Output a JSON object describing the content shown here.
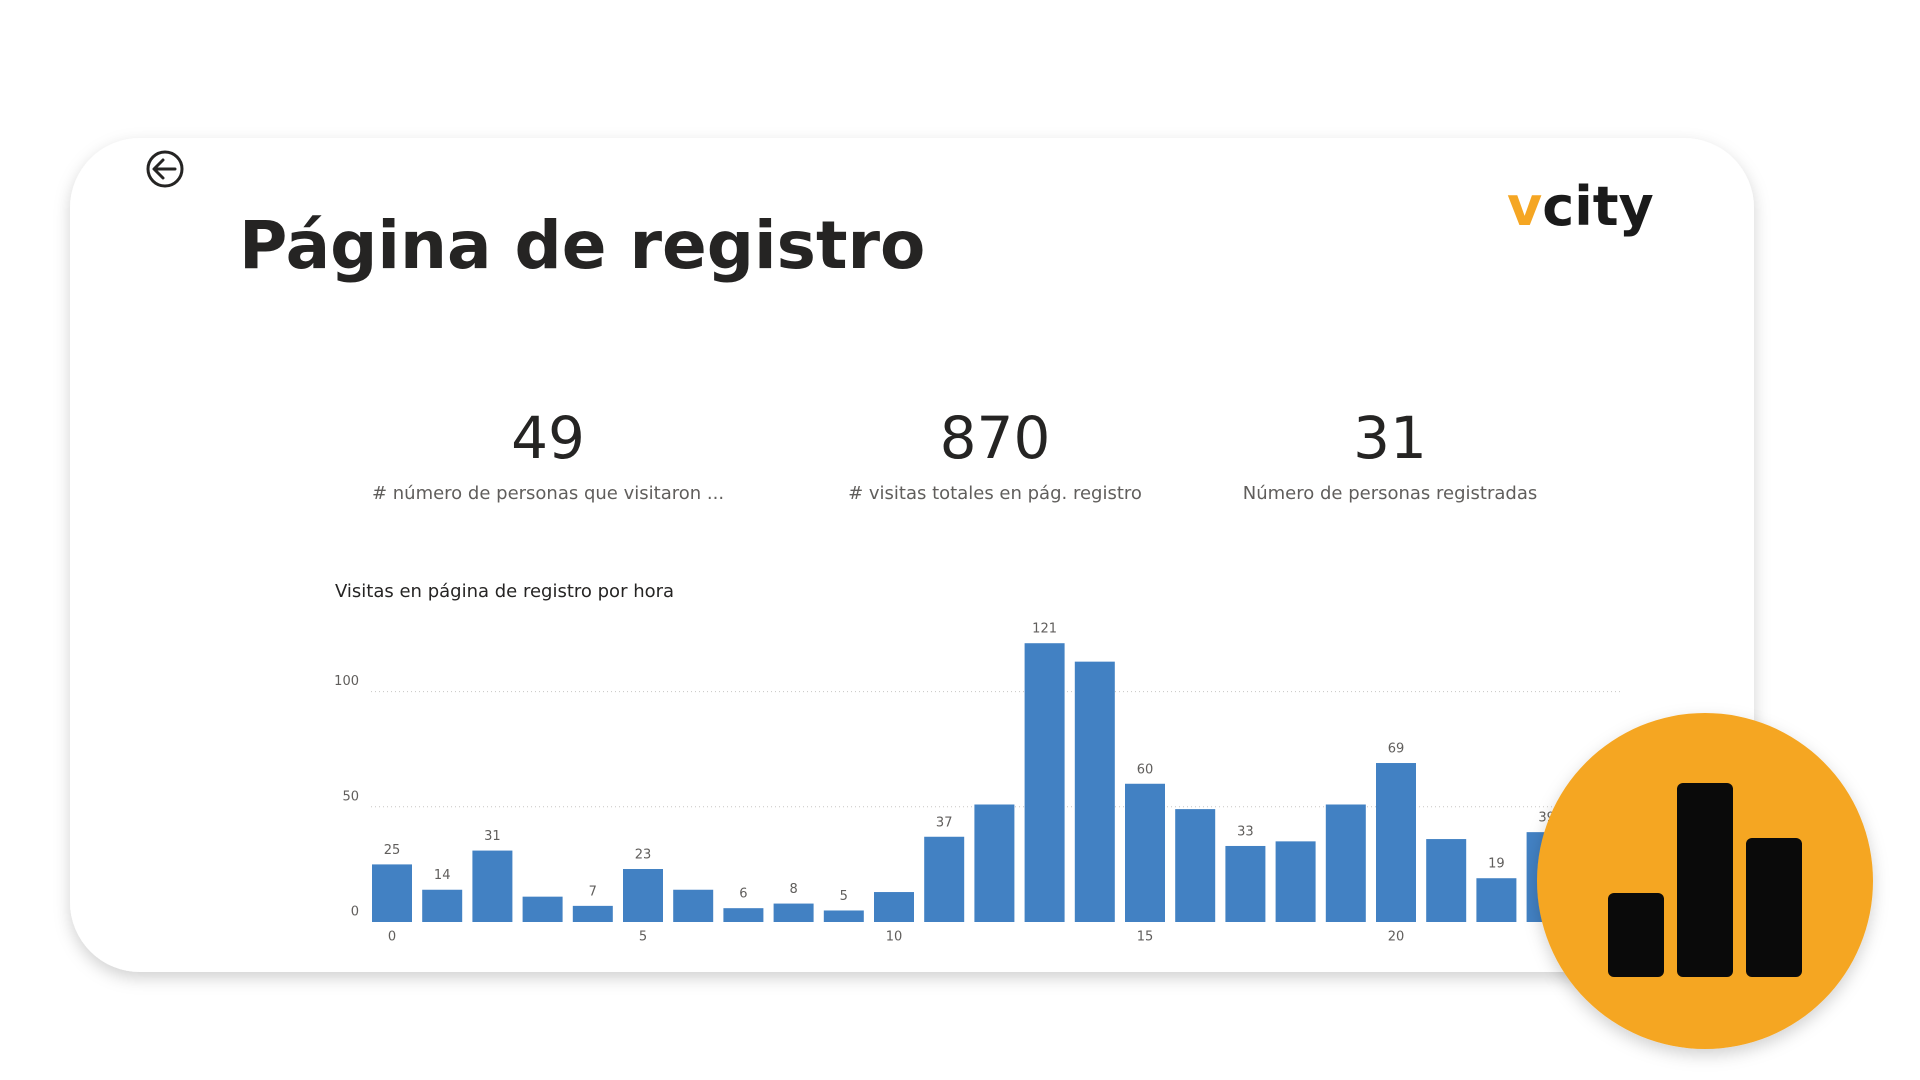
{
  "header": {
    "title": "Página de registro",
    "logo": {
      "accent": "v",
      "rest": "city"
    }
  },
  "kpis": [
    {
      "value": "49",
      "label": "# número de personas que visitaron ..."
    },
    {
      "value": "870",
      "label": "# visitas totales en pág. registro"
    },
    {
      "value": "31",
      "label": "Número de personas registradas"
    }
  ],
  "chart_data": {
    "type": "bar",
    "title": "Visitas en página de registro por hora",
    "x": [
      0,
      1,
      2,
      3,
      4,
      5,
      6,
      7,
      8,
      9,
      10,
      11,
      12,
      13,
      14,
      15,
      16,
      17,
      18,
      19,
      20,
      21,
      22,
      23
    ],
    "values": [
      25,
      14,
      31,
      11,
      7,
      23,
      14,
      6,
      8,
      5,
      13,
      37,
      51,
      121,
      113,
      60,
      49,
      33,
      35,
      51,
      69,
      36,
      19,
      39
    ],
    "value_labels": [
      "25",
      "14",
      "31",
      null,
      "7",
      "23",
      null,
      "6",
      "8",
      "5",
      null,
      "37",
      null,
      "121",
      null,
      "60",
      null,
      "33",
      null,
      null,
      "69",
      null,
      "19",
      "39"
    ],
    "color": "#4281c3",
    "ylim": [
      0,
      125
    ],
    "yticks": [
      0,
      50,
      100
    ],
    "xticks": [
      0,
      5,
      10,
      15,
      20
    ],
    "grid": true
  }
}
